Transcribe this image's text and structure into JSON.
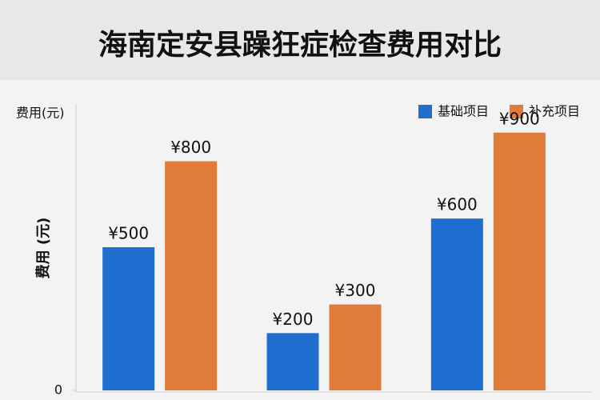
{
  "chart_data": {
    "type": "bar",
    "title": "海南定安县躁狂症检查费用对比",
    "unit_label": "费用(元)",
    "ylabel": "费用 (元)",
    "categories": [
      null,
      null,
      null
    ],
    "series": [
      {
        "name": "基础项目",
        "color": "#1f6fd0",
        "values": [
          500,
          200,
          600
        ],
        "value_labels": [
          "¥500",
          "¥200",
          "¥600"
        ]
      },
      {
        "name": "补充项目",
        "color": "#e07b3a",
        "values": [
          800,
          300,
          900
        ],
        "value_labels": [
          "¥800",
          "¥300",
          "¥900"
        ]
      }
    ],
    "ylim": [
      0,
      1000
    ],
    "yticks": [
      0
    ]
  }
}
